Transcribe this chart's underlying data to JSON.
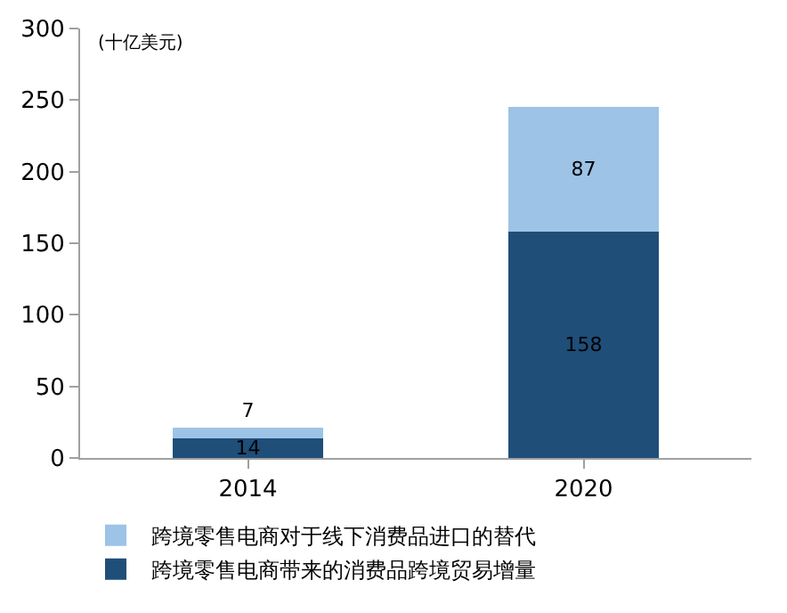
{
  "chart_data": {
    "type": "bar",
    "stacked": true,
    "annotations": [
      "(十亿美元)"
    ],
    "categories": [
      "2014",
      "2020"
    ],
    "series": [
      {
        "name": "跨境零售电商带来的消费品跨境贸易增量",
        "color": "#1f4e79",
        "values": [
          14,
          158
        ]
      },
      {
        "name": "跨境零售电商对于线下消费品进口的替代",
        "color": "#9dc3e6",
        "values": [
          7,
          87
        ]
      }
    ],
    "ylim": [
      0,
      300
    ],
    "yticks": [
      0,
      50,
      100,
      150,
      200,
      250,
      300
    ],
    "data_labels": true,
    "legend": "bottom"
  }
}
